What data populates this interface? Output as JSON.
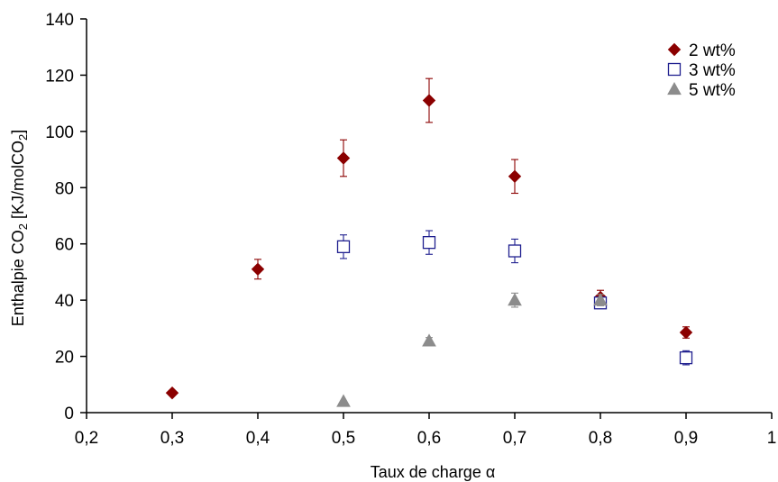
{
  "chart_data": {
    "type": "scatter",
    "xlabel": "Taux de charge α",
    "ylabel_main": "Enthalpie CO",
    "ylabel_sub1": "2",
    "ylabel_mid": " [KJ/molCO",
    "ylabel_sub2": "2",
    "ylabel_end": "]",
    "xlim": [
      0.2,
      1.0
    ],
    "ylim": [
      0,
      140
    ],
    "xticks": [
      0.2,
      0.3,
      0.4,
      0.5,
      0.6,
      0.7,
      0.8,
      0.9,
      1.0
    ],
    "xtick_labels": [
      "0,2",
      "0,3",
      "0,4",
      "0,5",
      "0,6",
      "0,7",
      "0,8",
      "0,9",
      "1"
    ],
    "yticks": [
      0,
      20,
      40,
      60,
      80,
      100,
      120,
      140
    ],
    "ytick_labels": [
      "0",
      "20",
      "40",
      "60",
      "80",
      "100",
      "120",
      "140"
    ],
    "grid": false,
    "legend_position": "top-right",
    "series": [
      {
        "name": "2 wt%",
        "marker": "diamond",
        "color": "#8B0000",
        "points": [
          {
            "x": 0.3,
            "y": 7,
            "err": 0
          },
          {
            "x": 0.4,
            "y": 51,
            "err": 3.5
          },
          {
            "x": 0.5,
            "y": 90.5,
            "err": 6.5
          },
          {
            "x": 0.6,
            "y": 111,
            "err": 7.8
          },
          {
            "x": 0.7,
            "y": 84,
            "err": 6
          },
          {
            "x": 0.8,
            "y": 41,
            "err": 2.5
          },
          {
            "x": 0.9,
            "y": 28.5,
            "err": 2
          }
        ]
      },
      {
        "name": "3 wt%",
        "marker": "square-open",
        "color": "#1F1F8F",
        "points": [
          {
            "x": 0.5,
            "y": 59,
            "err": 4.2
          },
          {
            "x": 0.6,
            "y": 60.5,
            "err": 4.2
          },
          {
            "x": 0.7,
            "y": 57.5,
            "err": 4.2
          },
          {
            "x": 0.8,
            "y": 39,
            "err": 2
          },
          {
            "x": 0.9,
            "y": 19.5,
            "err": 2.5
          }
        ]
      },
      {
        "name": "5 wt%",
        "marker": "triangle",
        "color": "#8C8C8C",
        "points": [
          {
            "x": 0.5,
            "y": 4,
            "err": 0
          },
          {
            "x": 0.6,
            "y": 25.5,
            "err": 1.2
          },
          {
            "x": 0.7,
            "y": 40,
            "err": 2.5
          },
          {
            "x": 0.8,
            "y": 40,
            "err": 2
          }
        ]
      }
    ]
  }
}
